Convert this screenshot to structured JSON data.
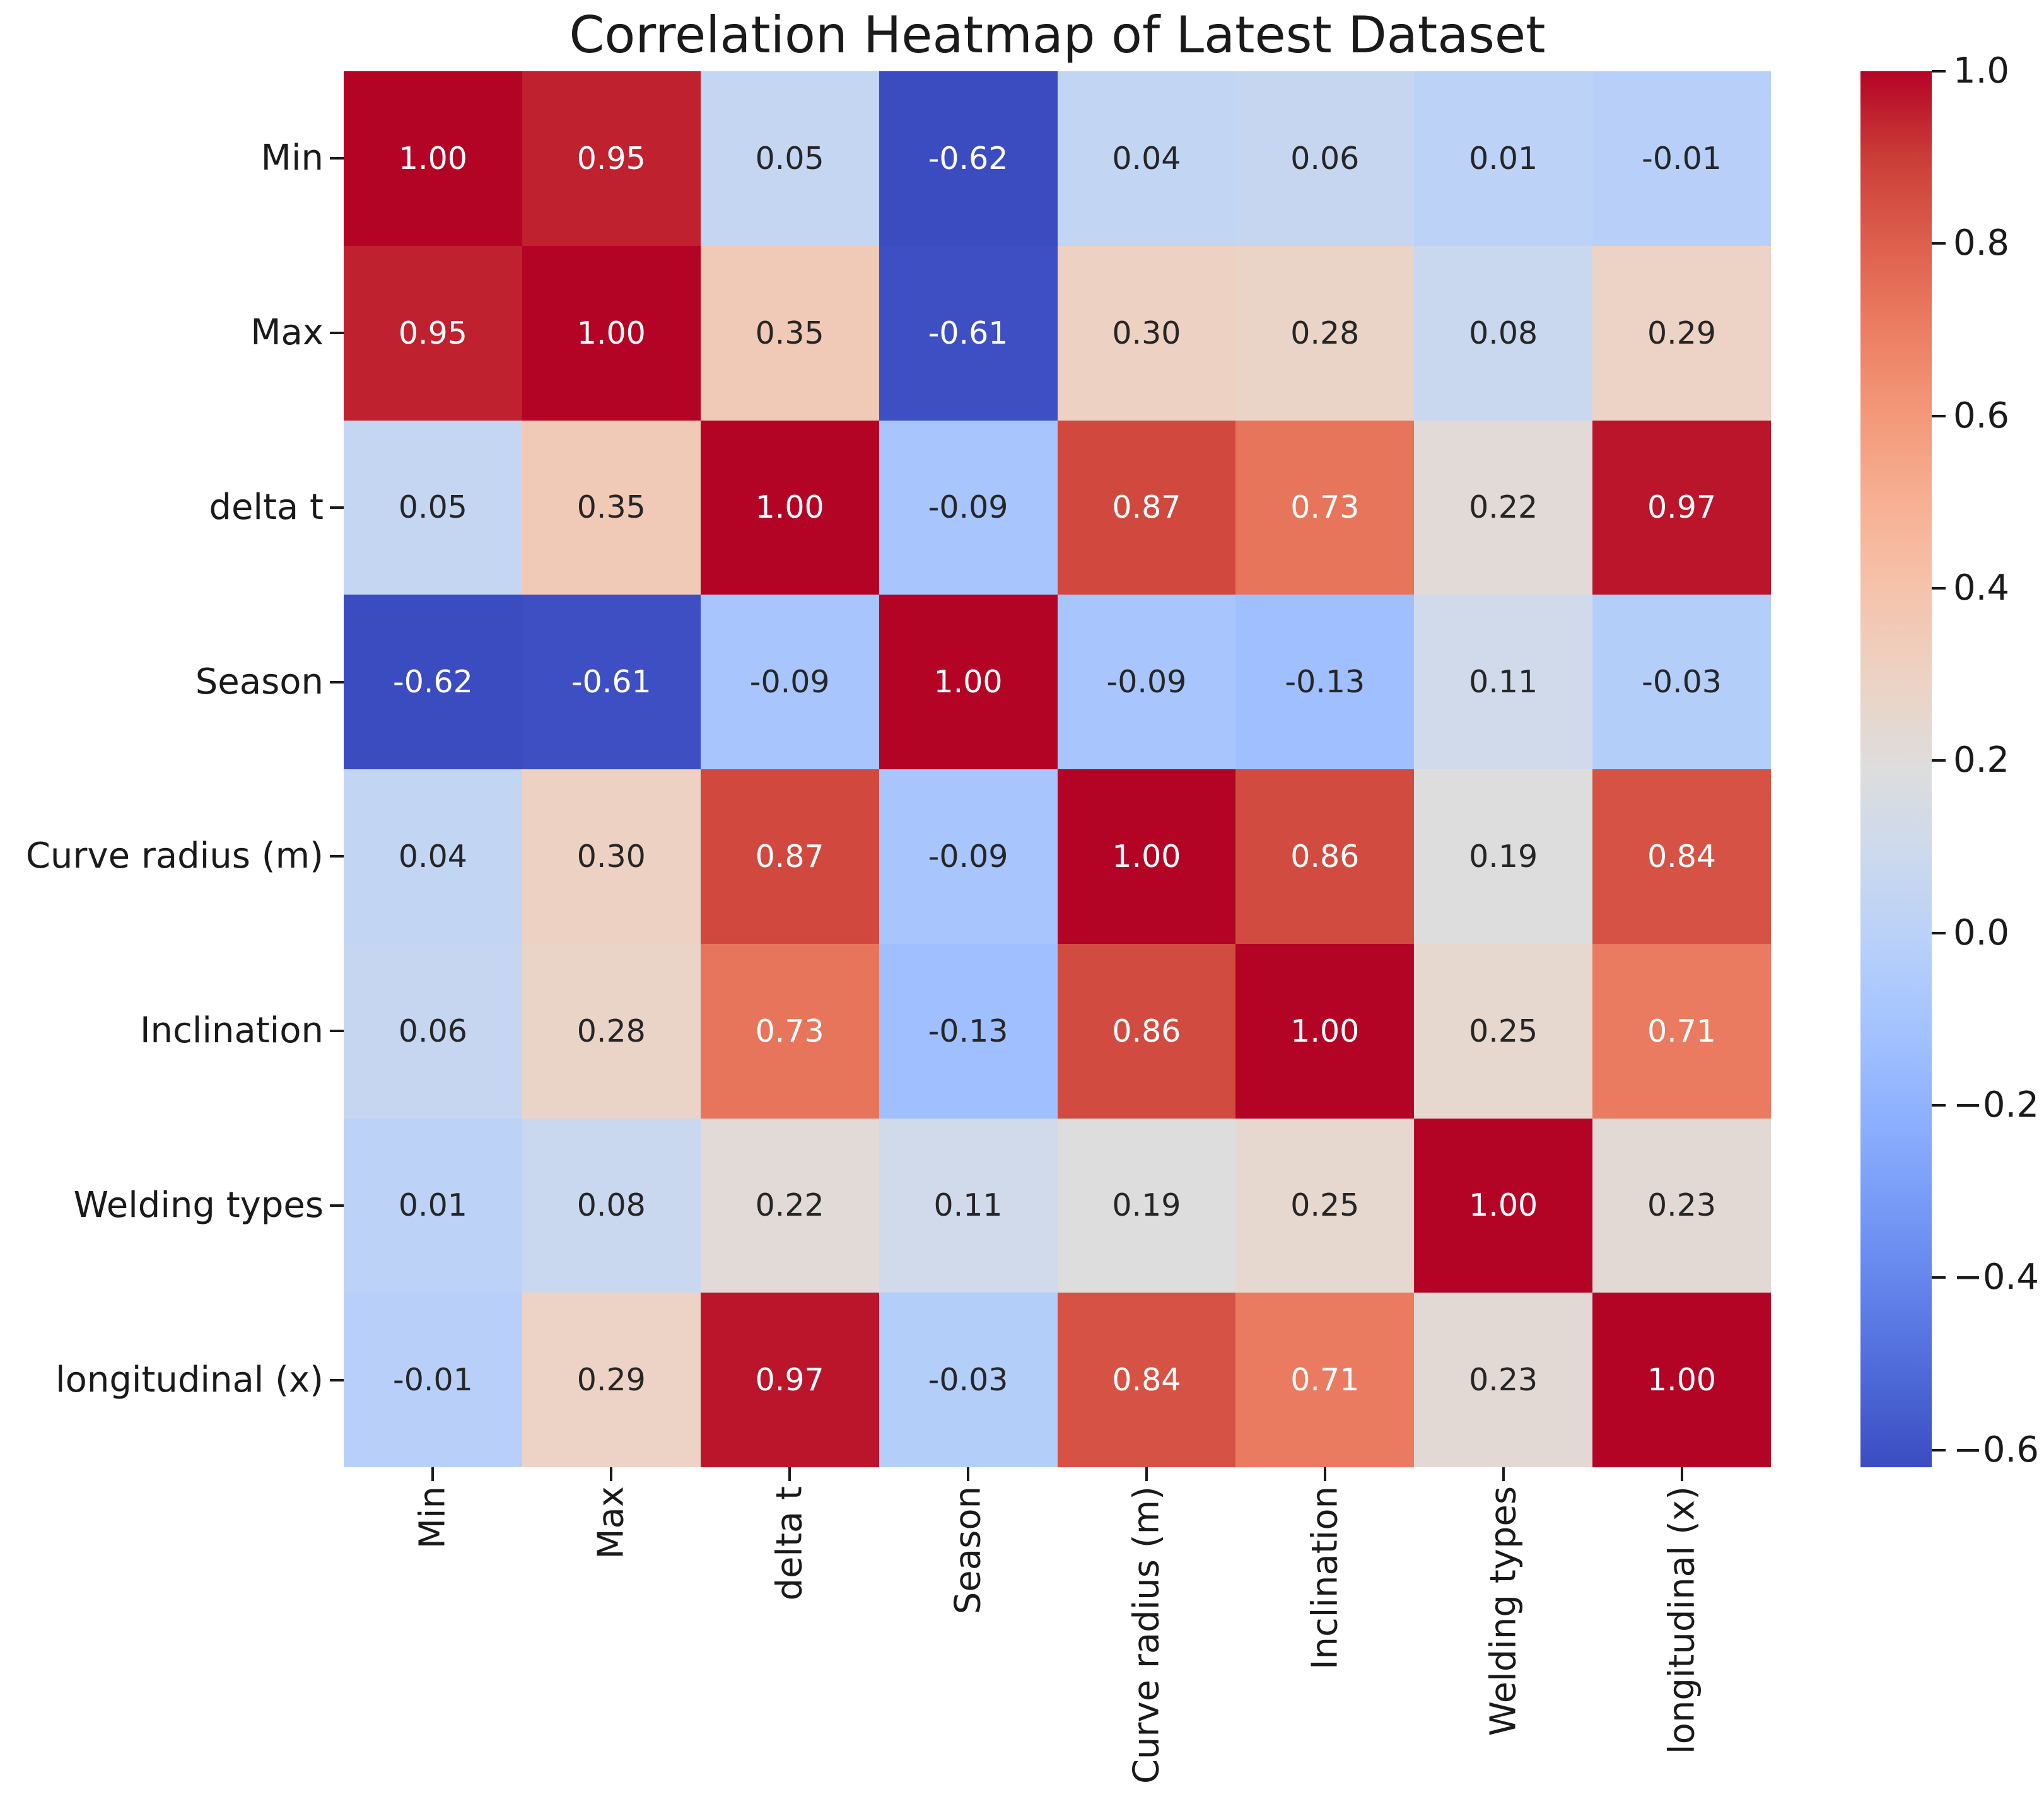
{
  "figure": {
    "title": "Correlation Heatmap of Latest Dataset",
    "background_color": "#ffffff"
  },
  "chart_data": {
    "type": "heatmap",
    "title": "Correlation Heatmap of Latest Dataset",
    "categories": [
      "Min",
      "Max",
      "delta t",
      "Season",
      "Curve radius (m)",
      "Inclination",
      "Welding types",
      "longitudinal (x)"
    ],
    "x_tick_labels": [
      "Min",
      "Max",
      "delta t",
      "Season",
      "Curve radius (m)",
      "Inclination",
      "Welding types",
      "longitudinal (x)"
    ],
    "y_tick_labels": [
      "Min",
      "Max",
      "delta t",
      "Season",
      "Curve radius (m)",
      "Inclination",
      "Welding types",
      "longitudinal (x)"
    ],
    "matrix": [
      [
        1.0,
        0.95,
        0.05,
        -0.62,
        0.04,
        0.06,
        0.01,
        -0.01
      ],
      [
        0.95,
        1.0,
        0.35,
        -0.61,
        0.3,
        0.28,
        0.08,
        0.29
      ],
      [
        0.05,
        0.35,
        1.0,
        -0.09,
        0.87,
        0.73,
        0.22,
        0.97
      ],
      [
        -0.62,
        -0.61,
        -0.09,
        1.0,
        -0.09,
        -0.13,
        0.11,
        -0.03
      ],
      [
        0.04,
        0.3,
        0.87,
        -0.09,
        1.0,
        0.86,
        0.19,
        0.84
      ],
      [
        0.06,
        0.28,
        0.73,
        -0.13,
        0.86,
        1.0,
        0.25,
        0.71
      ],
      [
        0.01,
        0.08,
        0.22,
        0.11,
        0.19,
        0.25,
        1.0,
        0.23
      ],
      [
        -0.01,
        0.29,
        0.97,
        -0.03,
        0.84,
        0.71,
        0.23,
        1.0
      ]
    ],
    "annotation_decimals": 2,
    "colormap": "coolwarm",
    "vmin": -0.62,
    "vmax": 1.0,
    "grid": false,
    "colorbar": {
      "position": "right",
      "tick_values": [
        1.0,
        0.8,
        0.6,
        0.4,
        0.2,
        0.0,
        -0.2,
        -0.4,
        -0.6
      ],
      "tick_labels": [
        "1.0",
        "0.8",
        "0.6",
        "0.4",
        "0.2",
        "0.0",
        "−0.2",
        "−0.4",
        "−0.6"
      ]
    },
    "annotation_colors": {
      "dark_text": "#262626",
      "light_text": "#ffffff"
    }
  }
}
